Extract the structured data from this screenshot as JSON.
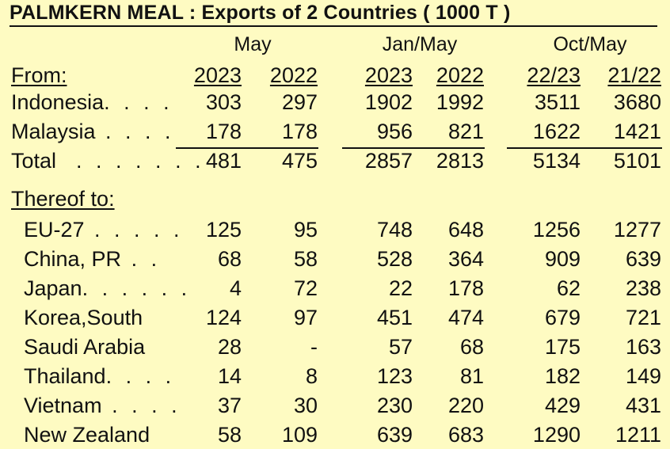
{
  "title": "PALMKERN MEAL :  Exports of 2 Countries  ( 1000 T )",
  "groups": [
    "May",
    "Jan/May",
    "Oct/May"
  ],
  "from_label": "From:",
  "year_headers": [
    "2023",
    "2022",
    "2023",
    "2022",
    "22/23",
    "21/22"
  ],
  "origin_rows": [
    {
      "label": "Indonesia",
      "dots": ". . . .",
      "values": [
        "303",
        "297",
        "1902",
        "1992",
        "3511",
        "3680"
      ]
    },
    {
      "label": "Malaysia",
      "dots": " . . . .",
      "values": [
        "178",
        "178",
        "956",
        "821",
        "1622",
        "1421"
      ]
    },
    {
      "label": "Total",
      "dots": "  . . . . . . .",
      "values": [
        "481",
        "475",
        "2857",
        "2813",
        "5134",
        "5101"
      ]
    }
  ],
  "thereof_label": "Thereof to:",
  "dest_rows": [
    {
      "label": "EU-27",
      "dots": " . . . . .",
      "values": [
        "125",
        "95",
        "748",
        "648",
        "1256",
        "1277"
      ]
    },
    {
      "label": "China, PR",
      "dots": " . .",
      "values": [
        "68",
        "58",
        "528",
        "364",
        "909",
        "639"
      ]
    },
    {
      "label": "Japan",
      "dots": ". . . . . .",
      "values": [
        "4",
        "72",
        "22",
        "178",
        "62",
        "238"
      ]
    },
    {
      "label": "Korea,South",
      "dots": "",
      "values": [
        "124",
        "97",
        "451",
        "474",
        "679",
        "721"
      ]
    },
    {
      "label": "Saudi Arabia",
      "dots": "",
      "values": [
        "28",
        "-",
        "57",
        "68",
        "175",
        "163"
      ]
    },
    {
      "label": "Thailand",
      "dots": ". . . .",
      "values": [
        "14",
        "8",
        "123",
        "81",
        "182",
        "149"
      ]
    },
    {
      "label": "Vietnam",
      "dots": " . . . .",
      "values": [
        "37",
        "30",
        "230",
        "220",
        "429",
        "431"
      ]
    },
    {
      "label": "New Zealand",
      "dots": "",
      "values": [
        "58",
        "109",
        "639",
        "683",
        "1290",
        "1211"
      ]
    }
  ]
}
